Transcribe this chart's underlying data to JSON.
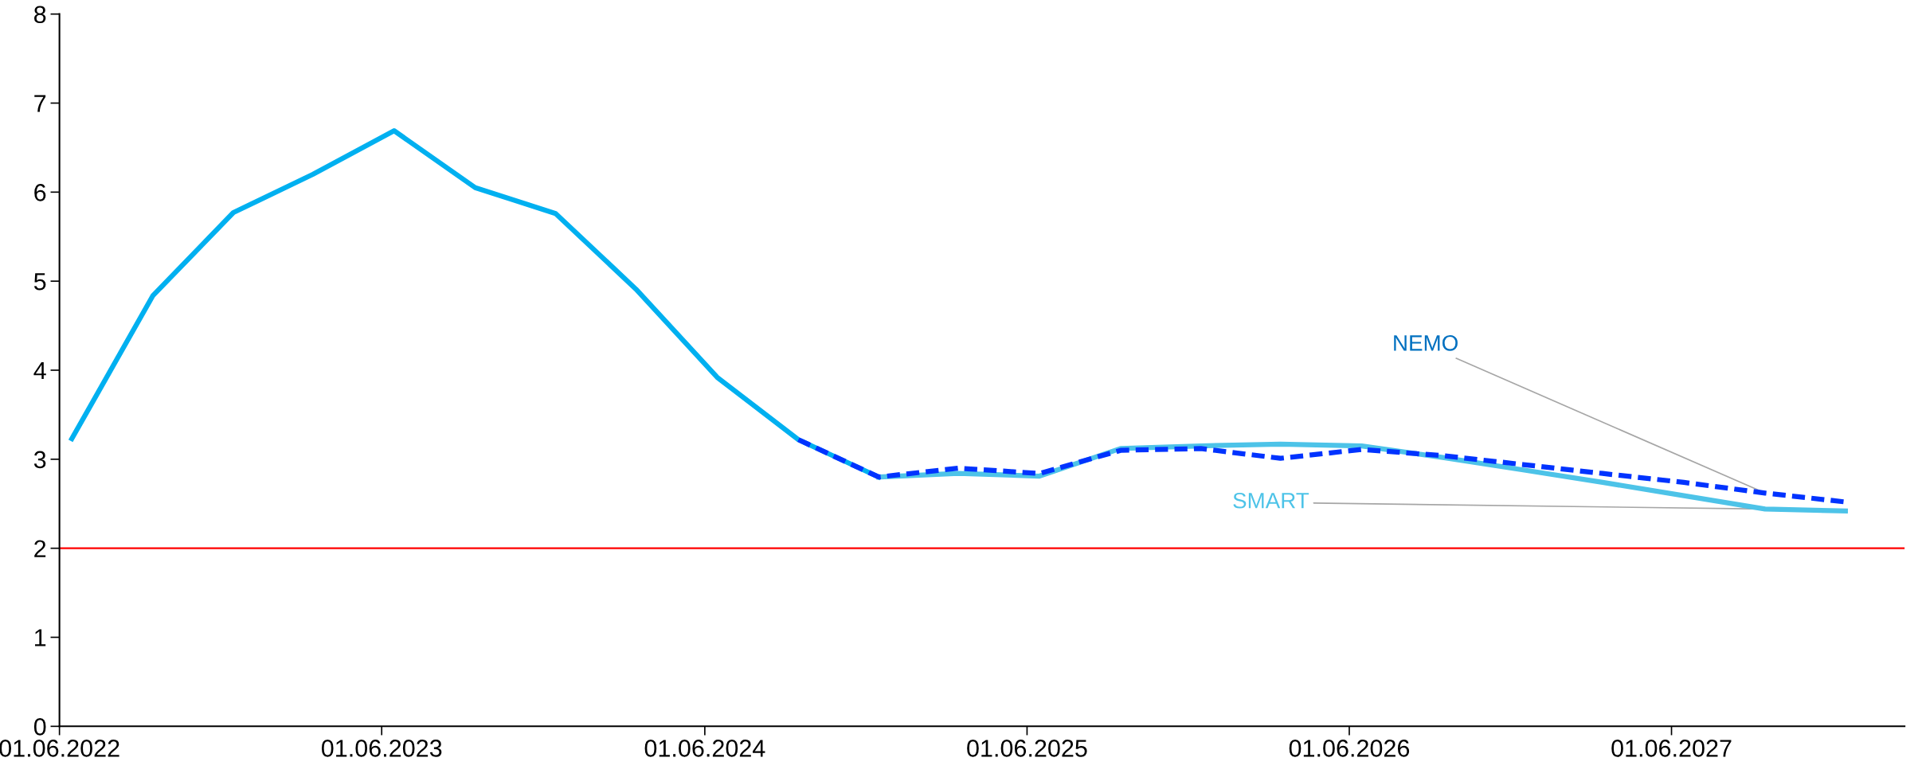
{
  "chart_data": {
    "type": "line",
    "xlim": [
      "2022-06-01",
      "2028-02-20"
    ],
    "ylim": [
      0,
      8
    ],
    "yticks": [
      0,
      1,
      2,
      3,
      4,
      5,
      6,
      7,
      8
    ],
    "xticks": [
      {
        "value": "2022-06-01",
        "label": "01.06.2022"
      },
      {
        "value": "2023-06-01",
        "label": "01.06.2023"
      },
      {
        "value": "2024-06-01",
        "label": "01.06.2024"
      },
      {
        "value": "2025-06-01",
        "label": "01.06.2025"
      },
      {
        "value": "2026-06-01",
        "label": "01.06.2026"
      },
      {
        "value": "2027-06-01",
        "label": "01.06.2027"
      }
    ],
    "grid": false,
    "legend": false,
    "marker": "none",
    "ref_lines": [
      {
        "axis": "y",
        "value": 2,
        "color": "#ff0000",
        "line_style": "solid"
      }
    ],
    "series": [
      {
        "name": "NEMO",
        "color": "#0033ff",
        "line_style": "dashed",
        "x": [
          "2024-09-15",
          "2024-12-15",
          "2025-03-15",
          "2025-06-15",
          "2025-09-15",
          "2025-12-15",
          "2026-03-15",
          "2026-06-15",
          "2026-09-15",
          "2026-12-15",
          "2027-03-15",
          "2027-06-15",
          "2027-09-15",
          "2027-12-15"
        ],
        "values": [
          3.22,
          2.8,
          2.9,
          2.84,
          3.1,
          3.12,
          3.01,
          3.11,
          3.04,
          2.94,
          2.84,
          2.74,
          2.62,
          2.52
        ]
      },
      {
        "name": "SMART",
        "color": "#4dc3e8",
        "line_style": "solid",
        "x": [
          "2024-12-15",
          "2025-03-15",
          "2025-06-15",
          "2025-09-15",
          "2025-12-15",
          "2026-03-15",
          "2026-06-15",
          "2026-09-15",
          "2026-12-15",
          "2027-03-15",
          "2027-06-15",
          "2027-09-15",
          "2027-12-15"
        ],
        "values": [
          2.8,
          2.84,
          2.81,
          3.12,
          3.15,
          3.17,
          3.15,
          3.02,
          2.88,
          2.74,
          2.59,
          2.44,
          2.42
        ]
      },
      {
        "color": "#00b0f0",
        "line_style": "solid",
        "x": [
          "2022-06-15",
          "2022-09-15",
          "2022-12-15",
          "2023-03-15",
          "2023-06-15",
          "2023-09-15",
          "2023-12-15",
          "2024-03-15",
          "2024-06-15",
          "2024-09-15",
          "2024-12-15"
        ],
        "values": [
          3.23,
          4.84,
          5.77,
          6.2,
          6.69,
          6.05,
          5.76,
          4.91,
          3.92,
          3.22,
          2.8
        ]
      }
    ]
  }
}
